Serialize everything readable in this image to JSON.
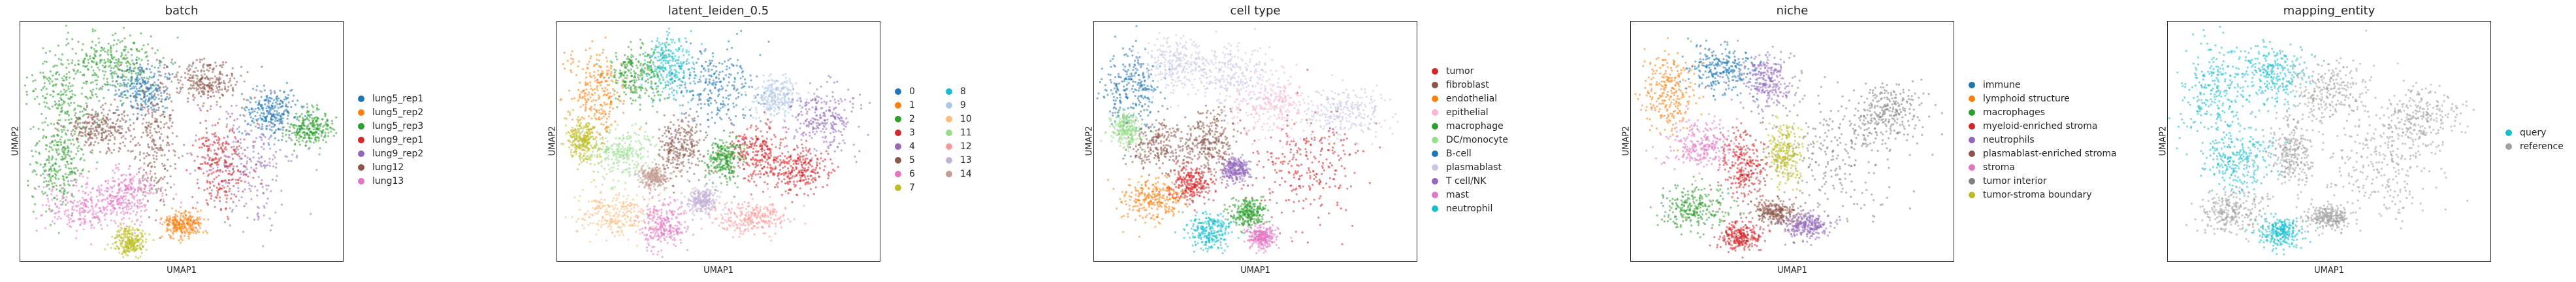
{
  "chart_data": [
    {
      "type": "scatter",
      "title": "batch",
      "xlabel": "UMAP1",
      "ylabel": "UMAP2",
      "grid": false,
      "legend_placement": "right",
      "series": [
        {
          "name": "lung5_rep1",
          "color": "#1f77b4"
        },
        {
          "name": "lung5_rep2",
          "color": "#ff7f0e"
        },
        {
          "name": "lung5_rep3",
          "color": "#2ca02c"
        },
        {
          "name": "lung9_rep1",
          "color": "#d62728"
        },
        {
          "name": "lung9_rep2",
          "color": "#9467bd"
        },
        {
          "name": "lung12",
          "color": "#8c564b"
        },
        {
          "name": "lung13",
          "color": "#e377c2"
        }
      ],
      "blobs": [
        {
          "x": 0.14,
          "y": 0.3,
          "rx": 0.13,
          "ry": 0.22,
          "c": "#2ca02c"
        },
        {
          "x": 0.3,
          "y": 0.18,
          "rx": 0.14,
          "ry": 0.14,
          "c": "#2ca02c"
        },
        {
          "x": 0.12,
          "y": 0.6,
          "rx": 0.1,
          "ry": 0.2,
          "c": "#2ca02c"
        },
        {
          "x": 0.38,
          "y": 0.28,
          "rx": 0.1,
          "ry": 0.12,
          "c": "#1f77b4"
        },
        {
          "x": 0.25,
          "y": 0.45,
          "rx": 0.12,
          "ry": 0.1,
          "c": "#8c564b"
        },
        {
          "x": 0.42,
          "y": 0.5,
          "rx": 0.08,
          "ry": 0.3,
          "c": "#8c564b"
        },
        {
          "x": 0.2,
          "y": 0.78,
          "rx": 0.14,
          "ry": 0.12,
          "c": "#e377c2"
        },
        {
          "x": 0.33,
          "y": 0.72,
          "rx": 0.1,
          "ry": 0.12,
          "c": "#e377c2"
        },
        {
          "x": 0.58,
          "y": 0.25,
          "rx": 0.12,
          "ry": 0.1,
          "c": "#8c564b"
        },
        {
          "x": 0.7,
          "y": 0.58,
          "rx": 0.18,
          "ry": 0.28,
          "c": "#9467bd"
        },
        {
          "x": 0.62,
          "y": 0.6,
          "rx": 0.1,
          "ry": 0.2,
          "c": "#d62728"
        },
        {
          "x": 0.9,
          "y": 0.45,
          "rx": 0.08,
          "ry": 0.08,
          "c": "#2ca02c"
        },
        {
          "x": 0.78,
          "y": 0.38,
          "rx": 0.1,
          "ry": 0.1,
          "c": "#1f77b4"
        },
        {
          "x": 0.34,
          "y": 0.92,
          "rx": 0.05,
          "ry": 0.07,
          "c": "#bcbd22"
        },
        {
          "x": 0.5,
          "y": 0.85,
          "rx": 0.07,
          "ry": 0.06,
          "c": "#ff7f0e"
        }
      ]
    },
    {
      "type": "scatter",
      "title": "latent_leiden_0.5",
      "xlabel": "UMAP1",
      "ylabel": "UMAP2",
      "grid": false,
      "legend_placement": "right",
      "series": [
        {
          "name": "0",
          "color": "#1f77b4"
        },
        {
          "name": "1",
          "color": "#ff7f0e"
        },
        {
          "name": "2",
          "color": "#2ca02c"
        },
        {
          "name": "3",
          "color": "#d62728"
        },
        {
          "name": "4",
          "color": "#9467bd"
        },
        {
          "name": "5",
          "color": "#8c564b"
        },
        {
          "name": "6",
          "color": "#e377c2"
        },
        {
          "name": "7",
          "color": "#bcbd22"
        },
        {
          "name": "8",
          "color": "#17becf"
        },
        {
          "name": "9",
          "color": "#aec7e8"
        },
        {
          "name": "10",
          "color": "#ffbb78"
        },
        {
          "name": "11",
          "color": "#98df8a"
        },
        {
          "name": "12",
          "color": "#ff9896"
        },
        {
          "name": "13",
          "color": "#c5b0d5"
        },
        {
          "name": "14",
          "color": "#c49c94"
        }
      ],
      "blobs": [
        {
          "x": 0.12,
          "y": 0.3,
          "rx": 0.1,
          "ry": 0.2,
          "c": "#ff7f0e"
        },
        {
          "x": 0.25,
          "y": 0.22,
          "rx": 0.1,
          "ry": 0.14,
          "c": "#2ca02c"
        },
        {
          "x": 0.35,
          "y": 0.18,
          "rx": 0.08,
          "ry": 0.14,
          "c": "#17becf"
        },
        {
          "x": 0.5,
          "y": 0.28,
          "rx": 0.14,
          "ry": 0.18,
          "c": "#1f77b4"
        },
        {
          "x": 0.82,
          "y": 0.4,
          "rx": 0.12,
          "ry": 0.16,
          "c": "#9467bd"
        },
        {
          "x": 0.68,
          "y": 0.32,
          "rx": 0.08,
          "ry": 0.1,
          "c": "#aec7e8"
        },
        {
          "x": 0.62,
          "y": 0.55,
          "rx": 0.1,
          "ry": 0.14,
          "c": "#d62728"
        },
        {
          "x": 0.75,
          "y": 0.62,
          "rx": 0.1,
          "ry": 0.1,
          "c": "#d62728"
        },
        {
          "x": 0.2,
          "y": 0.55,
          "rx": 0.12,
          "ry": 0.12,
          "c": "#98df8a"
        },
        {
          "x": 0.38,
          "y": 0.52,
          "rx": 0.08,
          "ry": 0.14,
          "c": "#8c564b"
        },
        {
          "x": 0.52,
          "y": 0.58,
          "rx": 0.06,
          "ry": 0.1,
          "c": "#2ca02c"
        },
        {
          "x": 0.18,
          "y": 0.8,
          "rx": 0.14,
          "ry": 0.1,
          "c": "#ffbb78"
        },
        {
          "x": 0.33,
          "y": 0.85,
          "rx": 0.08,
          "ry": 0.1,
          "c": "#e377c2"
        },
        {
          "x": 0.6,
          "y": 0.82,
          "rx": 0.12,
          "ry": 0.08,
          "c": "#ff9896"
        },
        {
          "x": 0.45,
          "y": 0.75,
          "rx": 0.06,
          "ry": 0.06,
          "c": "#c5b0d5"
        },
        {
          "x": 0.3,
          "y": 0.65,
          "rx": 0.05,
          "ry": 0.05,
          "c": "#c49c94"
        },
        {
          "x": 0.08,
          "y": 0.5,
          "rx": 0.05,
          "ry": 0.1,
          "c": "#bcbd22"
        }
      ]
    },
    {
      "type": "scatter",
      "title": "cell type",
      "xlabel": "UMAP1",
      "ylabel": "UMAP2",
      "grid": false,
      "legend_placement": "right",
      "series": [
        {
          "name": "tumor",
          "color": "#d62728"
        },
        {
          "name": "fibroblast",
          "color": "#8c564b"
        },
        {
          "name": "endothelial",
          "color": "#ff7f0e"
        },
        {
          "name": "epithelial",
          "color": "#f7b6d2"
        },
        {
          "name": "macrophage",
          "color": "#2ca02c"
        },
        {
          "name": "DC/monocyte",
          "color": "#98df8a"
        },
        {
          "name": "B-cell",
          "color": "#1f77b4"
        },
        {
          "name": "plasmablast",
          "color": "#c7c7e8"
        },
        {
          "name": "T cell/NK",
          "color": "#9467bd"
        },
        {
          "name": "mast",
          "color": "#e377c2"
        },
        {
          "name": "neutrophil",
          "color": "#17becf"
        }
      ],
      "blobs": [
        {
          "x": 0.12,
          "y": 0.28,
          "rx": 0.1,
          "ry": 0.18,
          "c": "#1f77b4"
        },
        {
          "x": 0.25,
          "y": 0.18,
          "rx": 0.12,
          "ry": 0.12,
          "c": "#c7c7e8"
        },
        {
          "x": 0.42,
          "y": 0.22,
          "rx": 0.14,
          "ry": 0.14,
          "c": "#c7c7e8"
        },
        {
          "x": 0.55,
          "y": 0.35,
          "rx": 0.14,
          "ry": 0.14,
          "c": "#f7b6d2"
        },
        {
          "x": 0.78,
          "y": 0.38,
          "rx": 0.14,
          "ry": 0.12,
          "c": "#c7c7e8"
        },
        {
          "x": 0.66,
          "y": 0.6,
          "rx": 0.2,
          "ry": 0.26,
          "c": "#d62728"
        },
        {
          "x": 0.2,
          "y": 0.52,
          "rx": 0.12,
          "ry": 0.12,
          "c": "#8c564b"
        },
        {
          "x": 0.36,
          "y": 0.5,
          "rx": 0.08,
          "ry": 0.16,
          "c": "#8c564b"
        },
        {
          "x": 0.3,
          "y": 0.68,
          "rx": 0.08,
          "ry": 0.08,
          "c": "#d62728"
        },
        {
          "x": 0.18,
          "y": 0.75,
          "rx": 0.12,
          "ry": 0.1,
          "c": "#ff7f0e"
        },
        {
          "x": 0.36,
          "y": 0.88,
          "rx": 0.08,
          "ry": 0.08,
          "c": "#17becf"
        },
        {
          "x": 0.48,
          "y": 0.8,
          "rx": 0.06,
          "ry": 0.07,
          "c": "#2ca02c"
        },
        {
          "x": 0.1,
          "y": 0.45,
          "rx": 0.05,
          "ry": 0.08,
          "c": "#98df8a"
        },
        {
          "x": 0.44,
          "y": 0.62,
          "rx": 0.05,
          "ry": 0.06,
          "c": "#9467bd"
        },
        {
          "x": 0.52,
          "y": 0.9,
          "rx": 0.05,
          "ry": 0.05,
          "c": "#e377c2"
        }
      ]
    },
    {
      "type": "scatter",
      "title": "niche",
      "xlabel": "UMAP1",
      "ylabel": "UMAP2",
      "grid": false,
      "legend_placement": "right",
      "series": [
        {
          "name": "immune",
          "color": "#1f77b4"
        },
        {
          "name": "lymphoid structure",
          "color": "#ff7f0e"
        },
        {
          "name": "macrophages",
          "color": "#2ca02c"
        },
        {
          "name": "myeloid-enriched stroma",
          "color": "#d62728"
        },
        {
          "name": "neutrophils",
          "color": "#9467bd"
        },
        {
          "name": "plasmablast-enriched stroma",
          "color": "#8c564b"
        },
        {
          "name": "stroma",
          "color": "#e377c2"
        },
        {
          "name": "tumor interior",
          "color": "#7f7f7f"
        },
        {
          "name": "tumor-stroma boundary",
          "color": "#bcbd22"
        }
      ],
      "blobs": [
        {
          "x": 0.12,
          "y": 0.3,
          "rx": 0.1,
          "ry": 0.2,
          "c": "#ff7f0e"
        },
        {
          "x": 0.28,
          "y": 0.2,
          "rx": 0.12,
          "ry": 0.12,
          "c": "#1f77b4"
        },
        {
          "x": 0.42,
          "y": 0.25,
          "rx": 0.1,
          "ry": 0.12,
          "c": "#9467bd"
        },
        {
          "x": 0.22,
          "y": 0.52,
          "rx": 0.12,
          "ry": 0.12,
          "c": "#e377c2"
        },
        {
          "x": 0.35,
          "y": 0.6,
          "rx": 0.08,
          "ry": 0.16,
          "c": "#d62728"
        },
        {
          "x": 0.62,
          "y": 0.55,
          "rx": 0.24,
          "ry": 0.3,
          "c": "#7f7f7f"
        },
        {
          "x": 0.8,
          "y": 0.38,
          "rx": 0.12,
          "ry": 0.14,
          "c": "#7f7f7f"
        },
        {
          "x": 0.48,
          "y": 0.55,
          "rx": 0.06,
          "ry": 0.14,
          "c": "#bcbd22"
        },
        {
          "x": 0.2,
          "y": 0.78,
          "rx": 0.12,
          "ry": 0.1,
          "c": "#2ca02c"
        },
        {
          "x": 0.34,
          "y": 0.9,
          "rx": 0.07,
          "ry": 0.07,
          "c": "#d62728"
        },
        {
          "x": 0.45,
          "y": 0.8,
          "rx": 0.08,
          "ry": 0.06,
          "c": "#8c564b"
        },
        {
          "x": 0.55,
          "y": 0.85,
          "rx": 0.08,
          "ry": 0.06,
          "c": "#9467bd"
        }
      ]
    },
    {
      "type": "scatter",
      "title": "mapping_entity",
      "xlabel": "UMAP1",
      "ylabel": "UMAP2",
      "grid": false,
      "legend_placement": "right",
      "series": [
        {
          "name": "query",
          "color": "#17becf"
        },
        {
          "name": "reference",
          "color": "#a0a0a0"
        }
      ],
      "blobs": [
        {
          "x": 0.15,
          "y": 0.3,
          "rx": 0.12,
          "ry": 0.22,
          "c": "#17becf"
        },
        {
          "x": 0.32,
          "y": 0.22,
          "rx": 0.12,
          "ry": 0.14,
          "c": "#17becf"
        },
        {
          "x": 0.5,
          "y": 0.3,
          "rx": 0.14,
          "ry": 0.14,
          "c": "#a0a0a0"
        },
        {
          "x": 0.78,
          "y": 0.4,
          "rx": 0.14,
          "ry": 0.14,
          "c": "#a0a0a0"
        },
        {
          "x": 0.66,
          "y": 0.6,
          "rx": 0.2,
          "ry": 0.26,
          "c": "#a0a0a0"
        },
        {
          "x": 0.22,
          "y": 0.58,
          "rx": 0.12,
          "ry": 0.14,
          "c": "#17becf"
        },
        {
          "x": 0.38,
          "y": 0.55,
          "rx": 0.08,
          "ry": 0.14,
          "c": "#a0a0a0"
        },
        {
          "x": 0.2,
          "y": 0.8,
          "rx": 0.12,
          "ry": 0.1,
          "c": "#a0a0a0"
        },
        {
          "x": 0.35,
          "y": 0.88,
          "rx": 0.07,
          "ry": 0.08,
          "c": "#17becf"
        },
        {
          "x": 0.5,
          "y": 0.82,
          "rx": 0.08,
          "ry": 0.06,
          "c": "#a0a0a0"
        }
      ]
    }
  ]
}
